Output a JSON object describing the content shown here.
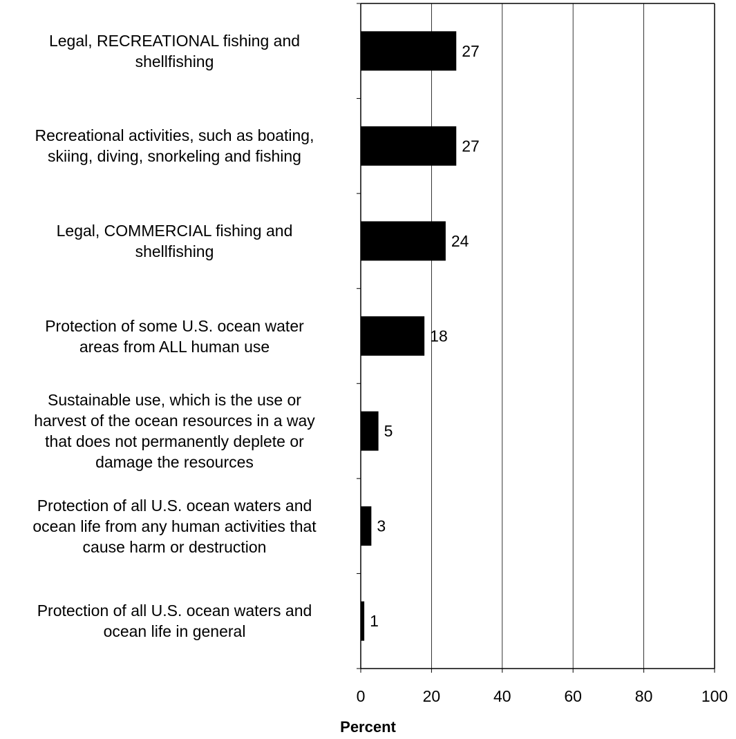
{
  "chart_data": {
    "type": "bar",
    "orientation": "horizontal",
    "categories": [
      [
        "Legal, RECREATIONAL fishing and",
        "shellfishing"
      ],
      [
        "Recreational activities, such as boating,",
        "skiing, diving, snorkeling and fishing"
      ],
      [
        "Legal, COMMERCIAL fishing and",
        "shellfishing"
      ],
      [
        "Protection of some U.S. ocean water",
        "areas from ALL human use"
      ],
      [
        "Sustainable use, which is the use or",
        "harvest of the ocean resources in a way",
        "that does not permanently deplete or",
        "damage the resources"
      ],
      [
        "Protection of all U.S. ocean waters and",
        "ocean life from any human activities that",
        "cause harm or destruction"
      ],
      [
        "Protection of all U.S. ocean waters and",
        "ocean life in general"
      ]
    ],
    "values": [
      27,
      27,
      24,
      18,
      5,
      3,
      1
    ],
    "data_labels": [
      "27",
      "27",
      "24",
      "18",
      "5",
      "3",
      "1"
    ],
    "xlabel": "Percent",
    "ylabel": "",
    "title": "",
    "xlim": [
      0,
      100
    ],
    "xticks": [
      "0",
      "20",
      "40",
      "60",
      "80",
      "100"
    ],
    "grid": "vertical",
    "legend": "none",
    "bar_color": "#000000"
  }
}
